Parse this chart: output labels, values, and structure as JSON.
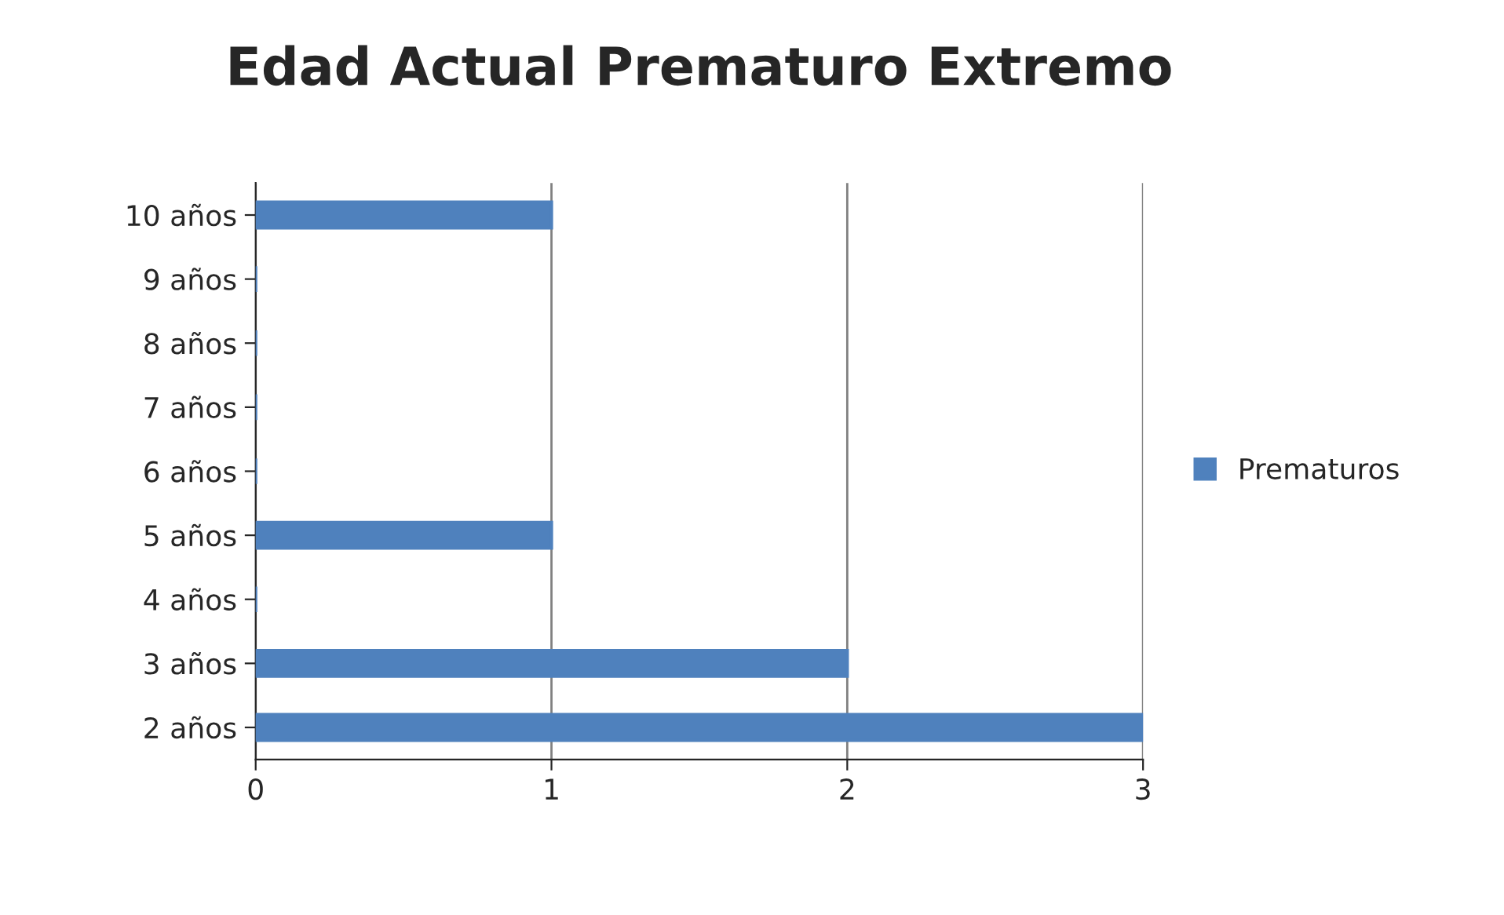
{
  "chart_data": {
    "type": "bar",
    "orientation": "horizontal",
    "title": "Edad Actual Prematuro Extremo",
    "categories": [
      "10 años",
      "9 años",
      "8 años",
      "7 años",
      "6 años",
      "5 años",
      "4 años",
      "3 años",
      "2 años"
    ],
    "series": [
      {
        "name": "Prematuros",
        "color": "#4f81bd",
        "values": [
          1,
          0,
          0,
          0,
          0,
          1,
          0,
          2,
          3
        ]
      }
    ],
    "xlim": [
      0,
      3
    ],
    "xticks": [
      0,
      1,
      2,
      3
    ],
    "grid": "x",
    "legend": "right"
  }
}
